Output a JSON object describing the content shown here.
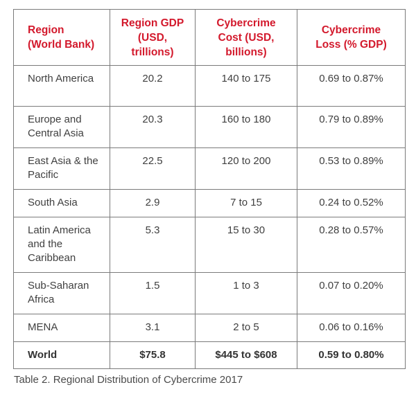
{
  "table": {
    "headers": [
      "Region\n(World Bank)",
      "Region GDP (USD, trillions)",
      "Cybercrime Cost (USD, billions)",
      "Cybercrime Loss (% GDP)"
    ],
    "rows": [
      {
        "region": "North America",
        "gdp": "20.2",
        "cost": "140 to 175",
        "loss": "0.69 to 0.87%"
      },
      {
        "region": "Europe and Central Asia",
        "gdp": "20.3",
        "cost": "160 to 180",
        "loss": "0.79 to 0.89%"
      },
      {
        "region": "East Asia & the Pacific",
        "gdp": "22.5",
        "cost": "120 to 200",
        "loss": "0.53 to 0.89%"
      },
      {
        "region": "South Asia",
        "gdp": "2.9",
        "cost": "7 to 15",
        "loss": "0.24 to 0.52%"
      },
      {
        "region": "Latin America and the Caribbean",
        "gdp": "5.3",
        "cost": "15 to 30",
        "loss": "0.28 to 0.57%"
      },
      {
        "region": "Sub-Saharan Africa",
        "gdp": "1.5",
        "cost": "1 to 3",
        "loss": "0.07 to 0.20%"
      },
      {
        "region": "MENA",
        "gdp": "3.1",
        "cost": "2 to 5",
        "loss": "0.06 to 0.16%"
      }
    ],
    "total": {
      "region": "World",
      "gdp": "$75.8",
      "cost": "$445 to $608",
      "loss": "0.59 to 0.80%"
    }
  },
  "caption": "Table 2. Regional Distribution of Cybercrime 2017",
  "colors": {
    "header_text": "#d3192c",
    "border": "#7a7a7a",
    "body_text": "#3f3f3f"
  }
}
